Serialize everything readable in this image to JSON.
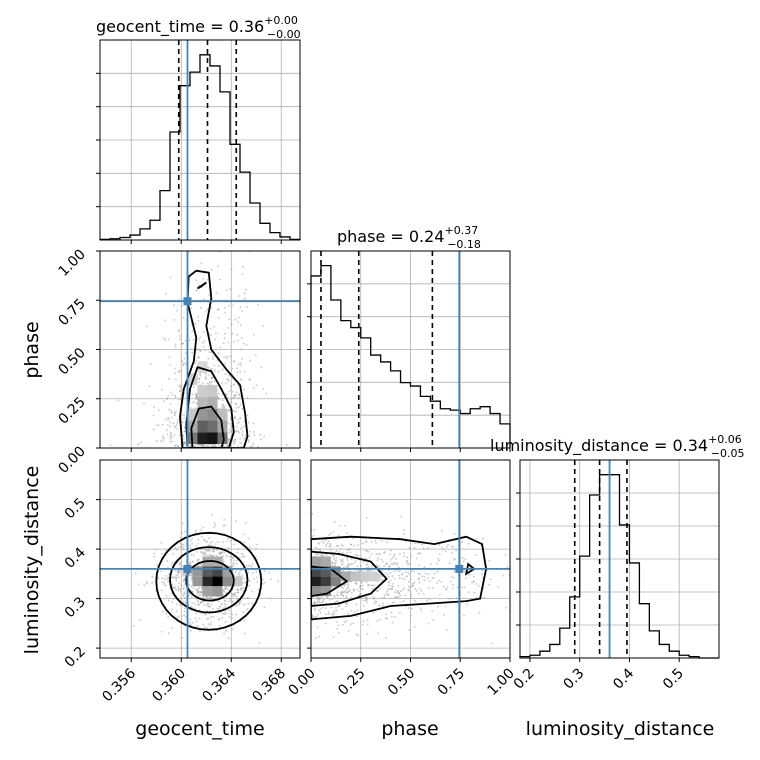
{
  "colors": {
    "truth": "#4682b4",
    "hist": "#000000",
    "grid": "#b0b0b0",
    "scatter": "#9a9a9a"
  },
  "chart_data": [
    {
      "type": "histogram",
      "panel": "geocent_time",
      "title": {
        "base": "geocent_time = 0.36",
        "sup": "+0.00",
        "sub": "−0.00"
      },
      "xlim": [
        0.3535,
        0.3695
      ],
      "bins": [
        0.3535,
        0.3543,
        0.3551,
        0.3559,
        0.3567,
        0.3575,
        0.3583,
        0.3591,
        0.3599,
        0.3607,
        0.3615,
        0.3623,
        0.3631,
        0.3639,
        0.3647,
        0.3655,
        0.3663,
        0.3671,
        0.3679,
        0.3687,
        0.3695
      ],
      "counts": [
        1,
        2,
        4,
        8,
        18,
        32,
        80,
        175,
        250,
        272,
        300,
        282,
        240,
        155,
        110,
        60,
        27,
        12,
        5,
        1
      ],
      "quantiles": [
        0.3598,
        0.3621,
        0.3644
      ],
      "truth": 0.3605
    },
    {
      "type": "histogram",
      "panel": "phase",
      "title": {
        "base": "phase = 0.24",
        "sup": "+0.37",
        "sub": "−0.18"
      },
      "xlim": [
        0,
        1
      ],
      "bins": [
        0,
        0.05,
        0.1,
        0.15,
        0.2,
        0.25,
        0.3,
        0.35,
        0.4,
        0.45,
        0.5,
        0.55,
        0.6,
        0.65,
        0.7,
        0.75,
        0.8,
        0.85,
        0.9,
        0.95,
        1.0
      ],
      "counts": [
        250,
        265,
        215,
        185,
        175,
        160,
        135,
        125,
        112,
        95,
        90,
        75,
        68,
        57,
        55,
        50,
        57,
        60,
        50,
        35
      ],
      "quantiles": [
        0.05,
        0.24,
        0.61
      ],
      "truth": 0.745
    },
    {
      "type": "histogram",
      "panel": "luminosity_distance",
      "title": {
        "base": "luminosity_distance = 0.34",
        "sup": "+0.06",
        "sub": "−0.05"
      },
      "xlim": [
        0.18,
        0.58
      ],
      "bins": [
        0.18,
        0.2,
        0.22,
        0.24,
        0.26,
        0.28,
        0.3,
        0.32,
        0.34,
        0.36,
        0.38,
        0.4,
        0.42,
        0.44,
        0.46,
        0.48,
        0.5,
        0.52,
        0.54,
        0.56,
        0.58
      ],
      "counts": [
        1,
        2,
        5,
        10,
        22,
        45,
        75,
        120,
        135,
        135,
        98,
        70,
        40,
        20,
        10,
        5,
        2,
        1,
        0,
        0
      ],
      "quantiles": [
        0.29,
        0.34,
        0.395
      ],
      "truth": 0.36
    },
    {
      "type": "scatter",
      "panel": "phase vs geocent_time",
      "x_param": "geocent_time",
      "y_param": "phase",
      "xlim": [
        0.3535,
        0.3695
      ],
      "ylim": [
        0,
        1
      ],
      "density_peak": [
        0.3621,
        0.07
      ],
      "contour_levels": 3,
      "truth": [
        0.3605,
        0.745
      ]
    },
    {
      "type": "scatter",
      "panel": "luminosity_distance vs geocent_time",
      "x_param": "geocent_time",
      "y_param": "luminosity_distance",
      "xlim": [
        0.3535,
        0.3695
      ],
      "ylim": [
        0.18,
        0.58
      ],
      "density_peak": [
        0.3625,
        0.335
      ],
      "contour_levels": 3,
      "truth": [
        0.3605,
        0.36
      ]
    },
    {
      "type": "scatter",
      "panel": "luminosity_distance vs phase",
      "x_param": "phase",
      "y_param": "luminosity_distance",
      "xlim": [
        0,
        1
      ],
      "ylim": [
        0.18,
        0.58
      ],
      "density_peak": [
        0.04,
        0.34
      ],
      "contour_levels": 3,
      "truth": [
        0.745,
        0.36
      ]
    }
  ],
  "axes": {
    "geocent_time": {
      "label": "geocent_time",
      "ticks": [
        0.356,
        0.36,
        0.364,
        0.368
      ],
      "tick_labels": [
        "0.356",
        "0.360",
        "0.364",
        "0.368"
      ]
    },
    "phase": {
      "label": "phase",
      "ticks": [
        0,
        0.25,
        0.5,
        0.75,
        1.0
      ],
      "tick_labels": [
        "0.00",
        "0.25",
        "0.50",
        "0.75",
        "1.00"
      ]
    },
    "luminosity_distance": {
      "label": "luminosity_distance",
      "ticks": [
        0.2,
        0.3,
        0.4,
        0.5
      ],
      "tick_labels": [
        "0.2",
        "0.3",
        "0.4",
        "0.5"
      ]
    }
  }
}
